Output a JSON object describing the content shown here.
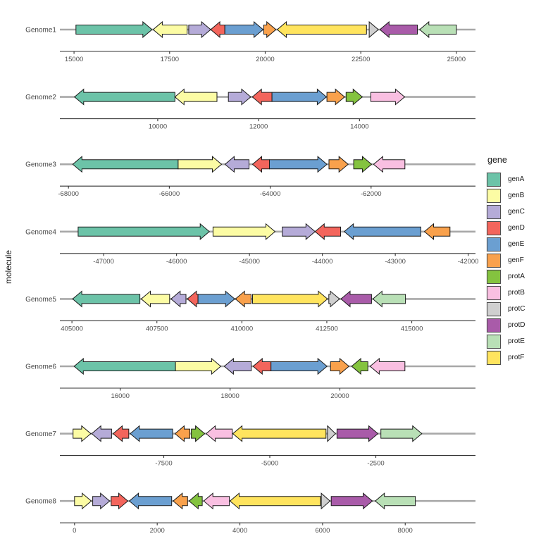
{
  "figure": {
    "y_axis_label": "molecule"
  },
  "legend": {
    "title": "gene",
    "items": [
      {
        "label": "genA",
        "color": "#6cc3a8"
      },
      {
        "label": "genB",
        "color": "#fcfca4"
      },
      {
        "label": "genC",
        "color": "#b5abd8"
      },
      {
        "label": "genD",
        "color": "#f3655c"
      },
      {
        "label": "genE",
        "color": "#6b9fd1"
      },
      {
        "label": "genF",
        "color": "#f9a14c"
      },
      {
        "label": "protA",
        "color": "#84c33f"
      },
      {
        "label": "protB",
        "color": "#f9bfe1"
      },
      {
        "label": "protC",
        "color": "#cfcfcf"
      },
      {
        "label": "protD",
        "color": "#a95ba9"
      },
      {
        "label": "protE",
        "color": "#b9e0b6"
      },
      {
        "label": "protF",
        "color": "#ffe45e"
      }
    ]
  },
  "chart_data": {
    "type": "gene-arrow-map",
    "x_scales": "free per facet",
    "genomes": [
      {
        "label": "Genome1",
        "axis": {
          "min": 14630,
          "max": 25500,
          "ticks": [
            15000,
            17500,
            20000,
            22500,
            25000
          ]
        },
        "genes": [
          {
            "gene": "genA",
            "start": 15050,
            "end": 17040,
            "strand": 1
          },
          {
            "gene": "genB",
            "start": 17070,
            "end": 17960,
            "strand": -1
          },
          {
            "gene": "genC",
            "start": 18000,
            "end": 18575,
            "strand": 1
          },
          {
            "gene": "genD",
            "start": 18575,
            "end": 18945,
            "strand": -1
          },
          {
            "gene": "genE",
            "start": 18945,
            "end": 19945,
            "strand": 1
          },
          {
            "gene": "genF",
            "start": 19960,
            "end": 20280,
            "strand": 1
          },
          {
            "gene": "protF",
            "start": 20315,
            "end": 22650,
            "strand": -1
          },
          {
            "gene": "protC",
            "start": 22720,
            "end": 22960,
            "strand": 1
          },
          {
            "gene": "protD",
            "start": 23000,
            "end": 23980,
            "strand": -1
          },
          {
            "gene": "protE",
            "start": 24040,
            "end": 25000,
            "strand": -1
          }
        ]
      },
      {
        "label": "Genome2",
        "axis": {
          "min": 8060,
          "max": 16300,
          "ticks": [
            10000,
            12000,
            14000
          ]
        },
        "genes": [
          {
            "gene": "genA",
            "start": 8350,
            "end": 10340,
            "strand": -1
          },
          {
            "gene": "genB",
            "start": 10340,
            "end": 11175,
            "strand": -1
          },
          {
            "gene": "genC",
            "start": 11400,
            "end": 11845,
            "strand": 1
          },
          {
            "gene": "genD",
            "start": 11875,
            "end": 12265,
            "strand": -1
          },
          {
            "gene": "genE",
            "start": 12265,
            "end": 13345,
            "strand": 1
          },
          {
            "gene": "genF",
            "start": 13355,
            "end": 13705,
            "strand": 1
          },
          {
            "gene": "protA",
            "start": 13735,
            "end": 14055,
            "strand": 1
          },
          {
            "gene": "protB",
            "start": 14225,
            "end": 14895,
            "strand": 1
          }
        ]
      },
      {
        "label": "Genome3",
        "axis": {
          "min": -68170,
          "max": -59930,
          "ticks": [
            -68000,
            -66000,
            -64000,
            -62000
          ]
        },
        "genes": [
          {
            "gene": "genA",
            "start": -67915,
            "end": -65825,
            "strand": -1
          },
          {
            "gene": "genB",
            "start": -65825,
            "end": -64965,
            "strand": 1
          },
          {
            "gene": "genC",
            "start": -64895,
            "end": -64420,
            "strand": -1
          },
          {
            "gene": "genD",
            "start": -64350,
            "end": -64015,
            "strand": -1
          },
          {
            "gene": "genE",
            "start": -64015,
            "end": -62875,
            "strand": 1
          },
          {
            "gene": "genF",
            "start": -62835,
            "end": -62455,
            "strand": 1
          },
          {
            "gene": "protA",
            "start": -62345,
            "end": -61990,
            "strand": 1
          },
          {
            "gene": "protB",
            "start": -61950,
            "end": -61330,
            "strand": -1
          }
        ]
      },
      {
        "label": "Genome4",
        "axis": {
          "min": -47600,
          "max": -41900,
          "ticks": [
            -47000,
            -46000,
            -45000,
            -44000,
            -43000,
            -42000
          ]
        },
        "genes": [
          {
            "gene": "genA",
            "start": -47350,
            "end": -45550,
            "strand": 1
          },
          {
            "gene": "genB",
            "start": -45500,
            "end": -44650,
            "strand": 1
          },
          {
            "gene": "genC",
            "start": -44550,
            "end": -44100,
            "strand": 1
          },
          {
            "gene": "genD",
            "start": -44100,
            "end": -43750,
            "strand": -1
          },
          {
            "gene": "genE",
            "start": -43700,
            "end": -42650,
            "strand": -1
          },
          {
            "gene": "genF",
            "start": -42600,
            "end": -42250,
            "strand": -1
          }
        ]
      },
      {
        "label": "Genome5",
        "axis": {
          "min": 404645,
          "max": 416875,
          "ticks": [
            405000,
            407500,
            410000,
            412500,
            415000
          ]
        },
        "genes": [
          {
            "gene": "genA",
            "start": 405020,
            "end": 407000,
            "strand": -1
          },
          {
            "gene": "genB",
            "start": 407040,
            "end": 407875,
            "strand": -1
          },
          {
            "gene": "genC",
            "start": 407915,
            "end": 408355,
            "strand": -1
          },
          {
            "gene": "genD",
            "start": 408395,
            "end": 408710,
            "strand": -1
          },
          {
            "gene": "genE",
            "start": 408710,
            "end": 409790,
            "strand": 1
          },
          {
            "gene": "genF",
            "start": 409810,
            "end": 410270,
            "strand": -1
          },
          {
            "gene": "protF",
            "start": 410315,
            "end": 412520,
            "strand": 1
          },
          {
            "gene": "protC",
            "start": 412560,
            "end": 412875,
            "strand": 1
          },
          {
            "gene": "protD",
            "start": 412915,
            "end": 413815,
            "strand": -1
          },
          {
            "gene": "protE",
            "start": 413855,
            "end": 414815,
            "strand": -1
          }
        ]
      },
      {
        "label": "Genome6",
        "axis": {
          "min": 14900,
          "max": 22470,
          "ticks": [
            16000,
            18000,
            20000
          ]
        },
        "genes": [
          {
            "gene": "genA",
            "start": 15160,
            "end": 17005,
            "strand": -1
          },
          {
            "gene": "genB",
            "start": 17005,
            "end": 17830,
            "strand": 1
          },
          {
            "gene": "genC",
            "start": 17895,
            "end": 18385,
            "strand": -1
          },
          {
            "gene": "genD",
            "start": 18420,
            "end": 18745,
            "strand": -1
          },
          {
            "gene": "genE",
            "start": 18745,
            "end": 19765,
            "strand": 1
          },
          {
            "gene": "genF",
            "start": 19830,
            "end": 20165,
            "strand": 1
          },
          {
            "gene": "protA",
            "start": 20215,
            "end": 20510,
            "strand": -1
          },
          {
            "gene": "protB",
            "start": 20550,
            "end": 21185,
            "strand": -1
          }
        ]
      },
      {
        "label": "Genome7",
        "axis": {
          "min": -9950,
          "max": -150,
          "ticks": [
            -7500,
            -5000,
            -2500
          ]
        },
        "genes": [
          {
            "gene": "genB",
            "start": -9640,
            "end": -9220,
            "strand": 1
          },
          {
            "gene": "genC",
            "start": -9200,
            "end": -8730,
            "strand": -1
          },
          {
            "gene": "genD",
            "start": -8695,
            "end": -8325,
            "strand": -1
          },
          {
            "gene": "genE",
            "start": -8290,
            "end": -7290,
            "strand": -1
          },
          {
            "gene": "genF",
            "start": -7235,
            "end": -6885,
            "strand": -1
          },
          {
            "gene": "protA",
            "start": -6850,
            "end": -6535,
            "strand": 1
          },
          {
            "gene": "protB",
            "start": -6500,
            "end": -5885,
            "strand": -1
          },
          {
            "gene": "protF",
            "start": -5870,
            "end": -3675,
            "strand": -1
          },
          {
            "gene": "protC",
            "start": -3640,
            "end": -3450,
            "strand": 1
          },
          {
            "gene": "protD",
            "start": -3415,
            "end": -2450,
            "strand": 1
          },
          {
            "gene": "protE",
            "start": -2380,
            "end": -1415,
            "strand": 1
          }
        ]
      },
      {
        "label": "Genome8",
        "axis": {
          "min": -355,
          "max": 9700,
          "ticks": [
            0,
            2000,
            4000,
            6000,
            8000
          ]
        },
        "genes": [
          {
            "gene": "genB",
            "start": 0,
            "end": 405,
            "strand": 1
          },
          {
            "gene": "genC",
            "start": 440,
            "end": 850,
            "strand": 1
          },
          {
            "gene": "genD",
            "start": 885,
            "end": 1290,
            "strand": 1
          },
          {
            "gene": "genE",
            "start": 1325,
            "end": 2350,
            "strand": -1
          },
          {
            "gene": "genF",
            "start": 2385,
            "end": 2735,
            "strand": -1
          },
          {
            "gene": "protA",
            "start": 2770,
            "end": 3090,
            "strand": -1
          },
          {
            "gene": "protB",
            "start": 3125,
            "end": 3745,
            "strand": -1
          },
          {
            "gene": "protF",
            "start": 3760,
            "end": 5950,
            "strand": -1
          },
          {
            "gene": "protC",
            "start": 5970,
            "end": 6180,
            "strand": 1
          },
          {
            "gene": "protD",
            "start": 6210,
            "end": 7205,
            "strand": 1
          },
          {
            "gene": "protE",
            "start": 7275,
            "end": 8245,
            "strand": -1
          }
        ]
      }
    ]
  }
}
